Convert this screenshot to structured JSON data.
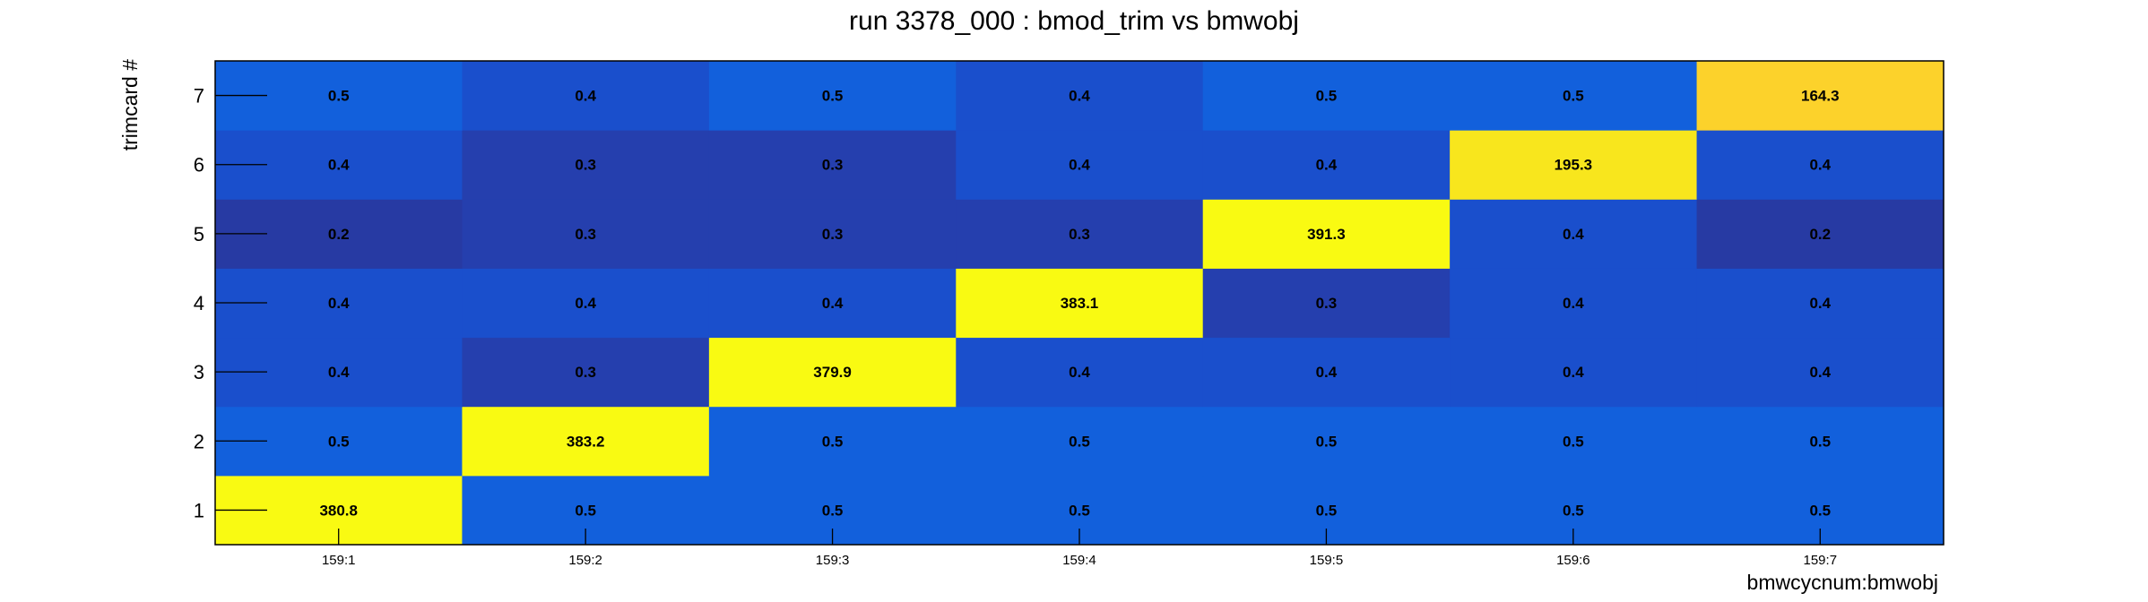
{
  "chart_data": {
    "type": "heatmap",
    "title": "run 3378_000 : bmod_trim vs bmwobj",
    "xlabel": "bmwcycnum:bmwobj",
    "ylabel": "trimcard #",
    "x_categories": [
      "159:1",
      "159:2",
      "159:3",
      "159:4",
      "159:5",
      "159:6",
      "159:7"
    ],
    "y_categories": [
      "1",
      "2",
      "3",
      "4",
      "5",
      "6",
      "7"
    ],
    "values": [
      [
        380.8,
        0.5,
        0.5,
        0.5,
        0.5,
        0.5,
        0.5
      ],
      [
        0.5,
        383.2,
        0.5,
        0.5,
        0.5,
        0.5,
        0.5
      ],
      [
        0.4,
        0.3,
        379.9,
        0.4,
        0.4,
        0.4,
        0.4
      ],
      [
        0.4,
        0.4,
        0.4,
        383.1,
        0.3,
        0.4,
        0.4
      ],
      [
        0.2,
        0.3,
        0.3,
        0.3,
        391.3,
        0.4,
        0.2
      ],
      [
        0.4,
        0.3,
        0.3,
        0.4,
        0.4,
        195.3,
        0.4
      ],
      [
        0.5,
        0.4,
        0.5,
        0.4,
        0.5,
        0.5,
        164.3
      ]
    ],
    "colorscale": {
      "0.2": "#273aa3",
      "0.3": "#253fae",
      "0.4": "#1a4fcc",
      "0.5": "#1260dc",
      "164.3": "#fcd22b",
      "195.3": "#f8e61d",
      "high": "#f9fa12"
    },
    "colors": {
      "tick": "#000000",
      "frame": "#000000",
      "background": "#ffffff"
    }
  }
}
